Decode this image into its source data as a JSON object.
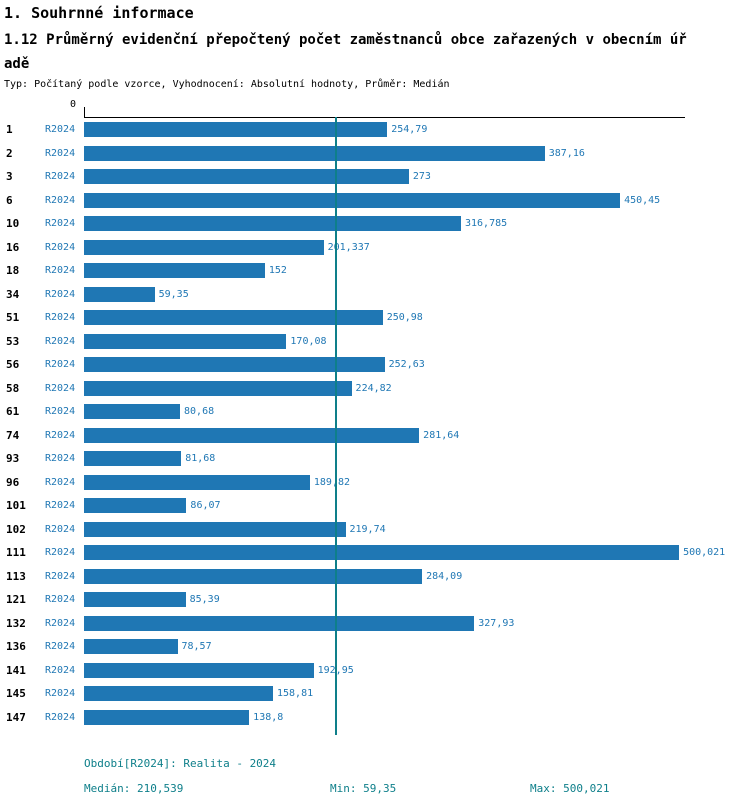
{
  "colors": {
    "bar": "#1f77b4",
    "value_label": "#1f77b4",
    "series_label": "#1f77b4",
    "median_line": "#0e7f8a",
    "footer_text": "#0e7f8a",
    "axis": "#000000"
  },
  "header": {
    "title": "1. Souhrnné informace",
    "subtitle_lines": [
      "1.12 Průměrný evidenční přepočtený počet zaměstnanců obce zařazených v obecním úř",
      "adě"
    ],
    "meta": "Typ: Počítaný podle vzorce, Vyhodnocení: Absolutní hodnoty, Průměr: Medián"
  },
  "footer": {
    "period": "Období[R2024]: Realita - 2024",
    "median": "Medián: 210,539",
    "min": "Min: 59,35",
    "max": "Max: 500,021"
  },
  "chart_data": {
    "type": "bar",
    "orientation": "horizontal",
    "series_label": "R2024",
    "axis_origin_label": "0",
    "xlim": [
      0,
      505
    ],
    "grid": false,
    "median_value": 210.539,
    "min_value": 59.35,
    "max_value": 500.021,
    "rows": [
      {
        "id": "1",
        "value": 254.79,
        "label": "254,79"
      },
      {
        "id": "2",
        "value": 387.16,
        "label": "387,16"
      },
      {
        "id": "3",
        "value": 273,
        "label": "273"
      },
      {
        "id": "6",
        "value": 450.45,
        "label": "450,45"
      },
      {
        "id": "10",
        "value": 316.785,
        "label": "316,785"
      },
      {
        "id": "16",
        "value": 201.337,
        "label": "201,337"
      },
      {
        "id": "18",
        "value": 152,
        "label": "152"
      },
      {
        "id": "34",
        "value": 59.35,
        "label": "59,35"
      },
      {
        "id": "51",
        "value": 250.98,
        "label": "250,98"
      },
      {
        "id": "53",
        "value": 170.08,
        "label": "170,08"
      },
      {
        "id": "56",
        "value": 252.63,
        "label": "252,63"
      },
      {
        "id": "58",
        "value": 224.82,
        "label": "224,82"
      },
      {
        "id": "61",
        "value": 80.68,
        "label": "80,68"
      },
      {
        "id": "74",
        "value": 281.64,
        "label": "281,64"
      },
      {
        "id": "93",
        "value": 81.68,
        "label": "81,68"
      },
      {
        "id": "96",
        "value": 189.82,
        "label": "189,82"
      },
      {
        "id": "101",
        "value": 86.07,
        "label": "86,07"
      },
      {
        "id": "102",
        "value": 219.74,
        "label": "219,74"
      },
      {
        "id": "111",
        "value": 500.021,
        "label": "500,021"
      },
      {
        "id": "113",
        "value": 284.09,
        "label": "284,09"
      },
      {
        "id": "121",
        "value": 85.39,
        "label": "85,39"
      },
      {
        "id": "132",
        "value": 327.93,
        "label": "327,93"
      },
      {
        "id": "136",
        "value": 78.57,
        "label": "78,57"
      },
      {
        "id": "141",
        "value": 192.95,
        "label": "192,95"
      },
      {
        "id": "145",
        "value": 158.81,
        "label": "158,81"
      },
      {
        "id": "147",
        "value": 138.8,
        "label": "138,8"
      }
    ]
  }
}
